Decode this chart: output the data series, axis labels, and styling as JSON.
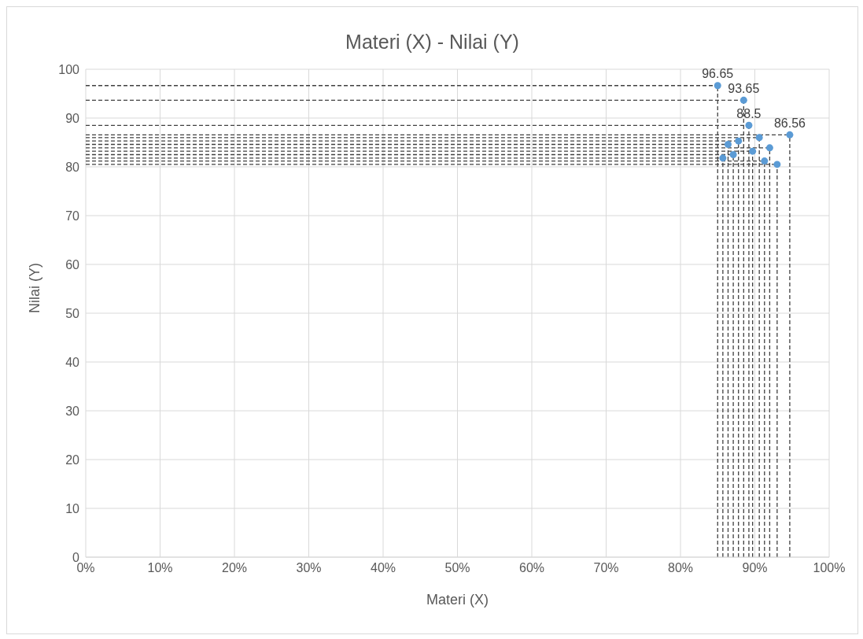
{
  "chart_data": {
    "type": "scatter",
    "title": "Materi (X) - Nilai (Y)",
    "xlabel": "Materi (X)",
    "ylabel": "Nilai (Y)",
    "x": [
      0.85,
      0.857,
      0.864,
      0.871,
      0.878,
      0.885,
      0.892,
      0.897,
      0.906,
      0.913,
      0.92,
      0.93,
      0.947
    ],
    "series": [
      {
        "color": "#5b9bd5",
        "values": [
          96.65,
          81.8,
          84.6,
          82.5,
          85.3,
          93.65,
          88.5,
          83.2,
          86.0,
          81.2,
          83.9,
          80.5,
          86.56
        ],
        "value_labels": [
          "96.65",
          null,
          null,
          null,
          null,
          "93.65",
          "88.5",
          null,
          null,
          null,
          null,
          null,
          "86.56"
        ],
        "errors": [
          [
            0,
            96.65
          ],
          [
            0,
            81.8
          ],
          [
            0,
            84.6
          ],
          [
            0,
            82.5
          ],
          [
            0,
            85.3
          ],
          [
            0,
            93.65
          ],
          [
            0,
            88.5
          ],
          [
            0,
            83.2
          ],
          [
            0,
            86.0
          ],
          [
            0,
            81.2
          ],
          [
            0,
            83.9
          ],
          [
            0,
            80.5
          ],
          [
            0,
            86.56
          ]
        ],
        "xerrors": [
          [
            0,
            0.85
          ],
          [
            0,
            0.857
          ],
          [
            0,
            0.864
          ],
          [
            0,
            0.871
          ],
          [
            0,
            0.878
          ],
          [
            0,
            0.885
          ],
          [
            0,
            0.892
          ],
          [
            0,
            0.897
          ],
          [
            0,
            0.906
          ],
          [
            0,
            0.913
          ],
          [
            0,
            0.92
          ],
          [
            0,
            0.93
          ],
          [
            0,
            0.947
          ]
        ]
      }
    ],
    "marker": "circle",
    "grid": true,
    "xlim": [
      0,
      1
    ],
    "xticks": [
      {
        "value": 0,
        "label": "0%"
      },
      {
        "value": 0.1,
        "label": "10%"
      },
      {
        "value": 0.2,
        "label": "20%"
      },
      {
        "value": 0.3,
        "label": "30%"
      },
      {
        "value": 0.4,
        "label": "40%"
      },
      {
        "value": 0.5,
        "label": "50%"
      },
      {
        "value": 0.6,
        "label": "60%"
      },
      {
        "value": 0.7,
        "label": "70%"
      },
      {
        "value": 0.8,
        "label": "80%"
      },
      {
        "value": 0.9,
        "label": "90%"
      },
      {
        "value": 1,
        "label": "100%"
      }
    ],
    "ylim": [
      0,
      100
    ],
    "yticks": [
      0,
      10,
      20,
      30,
      40,
      50,
      60,
      70,
      80,
      90,
      100
    ]
  }
}
